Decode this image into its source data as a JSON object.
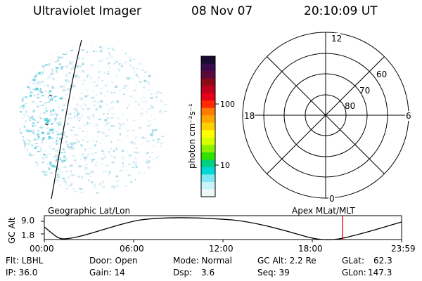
{
  "header": {
    "title": "Ultraviolet Imager",
    "date": "08 Nov 07",
    "time": "20:10:09 UT"
  },
  "colorbar": {
    "unit_label": "photon cm⁻²s⁻¹",
    "ticks": [
      "100",
      "10"
    ],
    "colors": [
      "#1a0a2e",
      "#3a0a4a",
      "#5a0a3a",
      "#8a0a1a",
      "#c0001a",
      "#e8001a",
      "#ff2a00",
      "#ff7a00",
      "#ffa500",
      "#ffd000",
      "#ffff00",
      "#d6ff00",
      "#8cf000",
      "#32e000",
      "#00d080",
      "#00d8d8",
      "#7fe8f0",
      "#c8f4f8",
      "#eef8fb"
    ]
  },
  "polar": {
    "mlt_labels": {
      "top": "12",
      "left": "18",
      "right": "6",
      "bottom": "0"
    },
    "lat_labels": [
      "60",
      "70",
      "80"
    ]
  },
  "timeline": {
    "left_title": "Geographic Lat/Lon",
    "right_title": "Apex  MLat/MLT",
    "y_axis_label": "GC Alt",
    "y_ticks": [
      "9.0",
      "1.8"
    ],
    "x_ticks": [
      "00:00",
      "06:00",
      "12:00",
      "18:00",
      "23:59"
    ],
    "marker_color": "#e00000"
  },
  "info": {
    "flt": "Flt: LBHL",
    "ip": "IP: 36.0",
    "door": "Door: Open",
    "gain": "Gain: 14",
    "mode": "Mode: Normal",
    "dsp_label": "Dsp:",
    "dsp_value": "3.6",
    "gcalt": "GC Alt: 2.2 Re",
    "seq": "Seq: 39",
    "glat_label": "GLat:",
    "glat_value": "62.3",
    "glon_label": "GLon:",
    "glon_value": "147.3"
  }
}
